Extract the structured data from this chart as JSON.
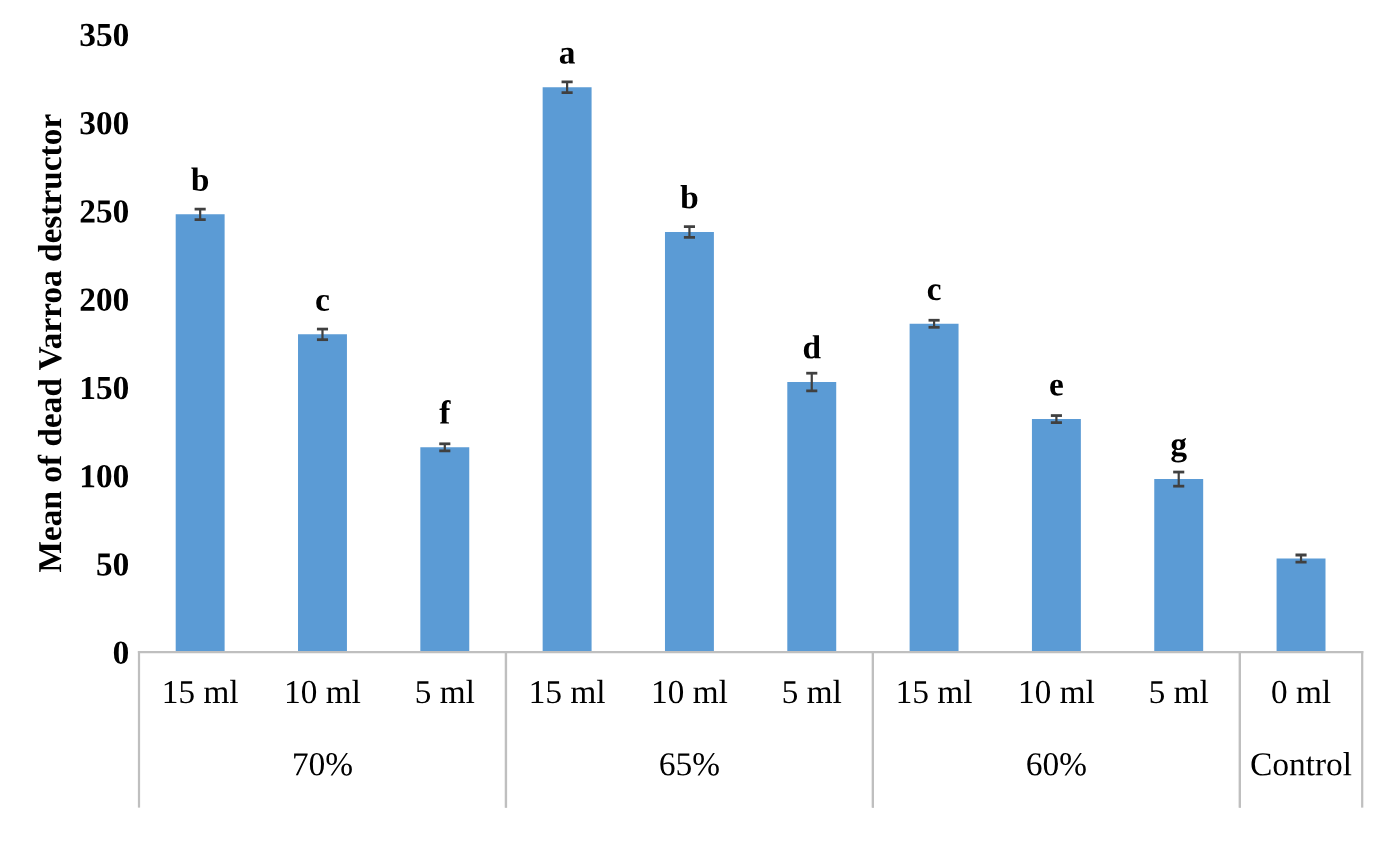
{
  "chart_data": {
    "type": "bar",
    "ylabel": "Mean of dead Varroa destructor",
    "categories": [
      "15 ml",
      "10 ml",
      "5 ml",
      "15 ml",
      "10 ml",
      "5 ml",
      "15 ml",
      "10 ml",
      "5 ml",
      "0 ml"
    ],
    "values": [
      248,
      180,
      116,
      320,
      238,
      153,
      186,
      132,
      98,
      53
    ],
    "errors": [
      3,
      3,
      2,
      3,
      3,
      5,
      2,
      2,
      4,
      2
    ],
    "value_labels": [
      "b",
      "c",
      "f",
      "a",
      "b",
      "d",
      "c",
      "e",
      "g",
      null
    ],
    "color": "#5b9bd5",
    "ylim": [
      0,
      350
    ],
    "yticks": [
      0,
      50,
      100,
      150,
      200,
      250,
      300,
      350
    ],
    "annotations": [
      "70%",
      "65%",
      "60%",
      "Control"
    ],
    "grid": false
  }
}
